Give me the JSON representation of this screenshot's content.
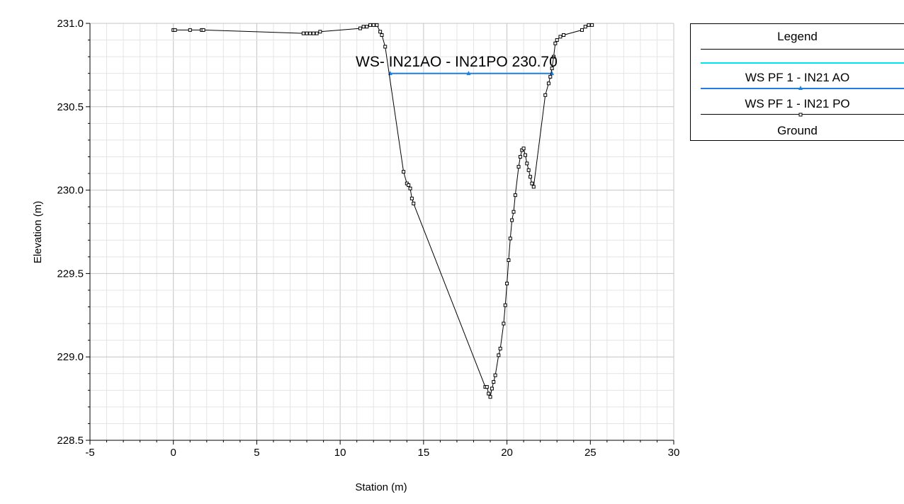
{
  "chart_data": {
    "type": "line",
    "title": "",
    "xlabel": "Station (m)",
    "ylabel": "Elevation (m)",
    "xlim": [
      -5,
      30
    ],
    "ylim": [
      228.5,
      231.0
    ],
    "x_ticks": [
      "-5",
      "0",
      "5",
      "10",
      "15",
      "20",
      "25",
      "30"
    ],
    "y_ticks": [
      "228.5",
      "229.0",
      "229.5",
      "230.0",
      "230.5",
      "231.0"
    ],
    "grid": true,
    "annotation": "WS- IN21AO - IN21PO 230.70",
    "legend": {
      "title": "Legend",
      "placement": "right",
      "entries": [
        "",
        "WS PF 1 - IN21 AO",
        "WS PF 1 - IN21 PO",
        "Ground"
      ]
    },
    "series": [
      {
        "name": "WS PF 1 - IN21 AO",
        "color": "#1f7fe0",
        "marker": "triangle",
        "x": [
          13.0,
          17.7,
          22.7
        ],
        "y": [
          230.7,
          230.7,
          230.7
        ]
      },
      {
        "name": "Ground",
        "color": "#000000",
        "marker": "square",
        "x": [
          0.0,
          0.1,
          1.0,
          1.7,
          1.8,
          7.8,
          8.0,
          8.2,
          8.4,
          8.6,
          8.8,
          11.2,
          11.4,
          11.6,
          11.8,
          12.0,
          12.2,
          12.4,
          12.5,
          12.7,
          13.8,
          14.0,
          14.1,
          14.2,
          14.3,
          14.4,
          18.7,
          18.8,
          18.9,
          19.0,
          19.1,
          19.2,
          19.3,
          19.5,
          19.6,
          19.8,
          19.9,
          20.0,
          20.1,
          20.2,
          20.3,
          20.4,
          20.5,
          20.7,
          20.8,
          20.9,
          21.0,
          21.1,
          21.2,
          21.3,
          21.4,
          21.5,
          21.6,
          22.3,
          22.5,
          22.6,
          22.7,
          22.8,
          22.9,
          23.0,
          23.2,
          23.4,
          24.5,
          24.7,
          24.9,
          25.1
        ],
        "y": [
          230.96,
          230.96,
          230.96,
          230.96,
          230.96,
          230.94,
          230.94,
          230.94,
          230.94,
          230.94,
          230.95,
          230.97,
          230.98,
          230.98,
          230.99,
          230.99,
          230.99,
          230.95,
          230.93,
          230.86,
          230.11,
          230.04,
          230.03,
          230.01,
          229.95,
          229.92,
          228.82,
          228.82,
          228.78,
          228.76,
          228.81,
          228.85,
          228.89,
          229.01,
          229.05,
          229.2,
          229.31,
          229.44,
          229.58,
          229.71,
          229.82,
          229.87,
          229.97,
          230.14,
          230.2,
          230.24,
          230.25,
          230.21,
          230.16,
          230.12,
          230.08,
          230.04,
          230.02,
          230.57,
          230.64,
          230.68,
          230.73,
          230.8,
          230.88,
          230.9,
          230.92,
          230.93,
          230.96,
          230.98,
          230.99,
          230.99
        ]
      }
    ]
  }
}
